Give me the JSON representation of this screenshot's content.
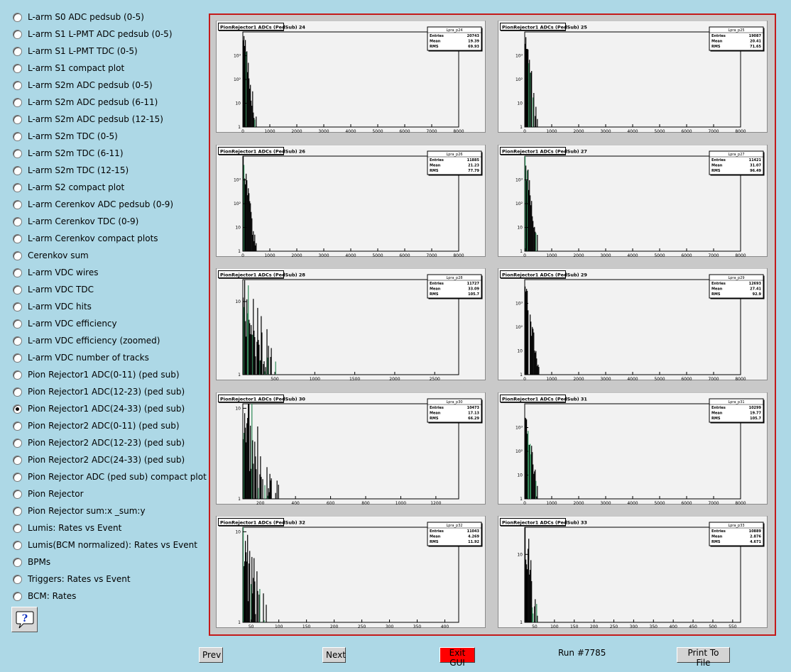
{
  "sidebar": {
    "items": [
      {
        "label": "L-arm S0 ADC pedsub (0-5)",
        "checked": false
      },
      {
        "label": "L-arm S1 L-PMT ADC pedsub (0-5)",
        "checked": false
      },
      {
        "label": "L-arm S1 L-PMT TDC (0-5)",
        "checked": false
      },
      {
        "label": "L-arm S1 compact plot",
        "checked": false
      },
      {
        "label": "L-arm S2m ADC pedsub (0-5)",
        "checked": false
      },
      {
        "label": "L-arm S2m ADC pedsub (6-11)",
        "checked": false
      },
      {
        "label": "L-arm S2m ADC pedsub (12-15)",
        "checked": false
      },
      {
        "label": "L-arm S2m TDC (0-5)",
        "checked": false
      },
      {
        "label": "L-arm S2m TDC (6-11)",
        "checked": false
      },
      {
        "label": "L-arm S2m TDC (12-15)",
        "checked": false
      },
      {
        "label": "L-arm S2 compact plot",
        "checked": false
      },
      {
        "label": "L-arm Cerenkov ADC pedsub (0-9)",
        "checked": false
      },
      {
        "label": "L-arm Cerenkov TDC (0-9)",
        "checked": false
      },
      {
        "label": "L-arm Cerenkov compact plots",
        "checked": false
      },
      {
        "label": "Cerenkov sum",
        "checked": false
      },
      {
        "label": "L-arm VDC wires",
        "checked": false
      },
      {
        "label": "L-arm VDC TDC",
        "checked": false
      },
      {
        "label": "L-arm VDC hits",
        "checked": false
      },
      {
        "label": "L-arm VDC efficiency",
        "checked": false
      },
      {
        "label": "L-arm VDC efficiency (zoomed)",
        "checked": false
      },
      {
        "label": "L-arm VDC number of tracks",
        "checked": false
      },
      {
        "label": "Pion Rejector1 ADC(0-11) (ped sub)",
        "checked": false
      },
      {
        "label": "Pion Rejector1 ADC(12-23) (ped sub)",
        "checked": false
      },
      {
        "label": "Pion Rejector1 ADC(24-33) (ped sub)",
        "checked": true
      },
      {
        "label": "Pion Rejector2 ADC(0-11) (ped sub)",
        "checked": false
      },
      {
        "label": "Pion Rejector2 ADC(12-23) (ped sub)",
        "checked": false
      },
      {
        "label": "Pion Rejector2 ADC(24-33) (ped sub)",
        "checked": false
      },
      {
        "label": "Pion Rejector ADC (ped sub) compact plot",
        "checked": false
      },
      {
        "label": "Pion Rejector",
        "checked": false
      },
      {
        "label": "Pion Rejector sum:x _sum:y",
        "checked": false
      },
      {
        "label": "Lumis: Rates vs Event",
        "checked": false
      },
      {
        "label": "Lumis(BCM normalized): Rates vs Event",
        "checked": false
      },
      {
        "label": "BPMs",
        "checked": false
      },
      {
        "label": "Triggers: Rates vs Event",
        "checked": false
      },
      {
        "label": "BCM: Rates",
        "checked": false
      }
    ],
    "help_icon": "question-mark-icon"
  },
  "chart_data": [
    {
      "type": "histogram",
      "title": "PionRejector1 ADCs (PedSub) 24",
      "stats": {
        "name": "Lpra_p24",
        "entries": "20743",
        "mean": "19.39",
        "rms": "69.93"
      },
      "xlim": [
        0,
        8000
      ],
      "xticks": [
        0,
        1000,
        2000,
        3000,
        4000,
        5000,
        6000,
        7000,
        8000
      ],
      "ylog": true,
      "yticks": [
        "1",
        "10",
        "10²",
        "10³"
      ],
      "ydecades": [
        0,
        4
      ],
      "hist": {
        "decay": 0.0035,
        "xmax": 900,
        "peak": 3.9
      }
    },
    {
      "type": "histogram",
      "title": "PionRejector1 ADCs (PedSub) 25",
      "stats": {
        "name": "Lpra_p25",
        "entries": "19087",
        "mean": "20.41",
        "rms": "71.65"
      },
      "xlim": [
        0,
        8000
      ],
      "xticks": [
        0,
        1000,
        2000,
        3000,
        4000,
        5000,
        6000,
        7000,
        8000
      ],
      "ylog": true,
      "yticks": [
        "1",
        "10",
        "10²",
        "10³"
      ],
      "ydecades": [
        0,
        4
      ],
      "hist": {
        "decay": 0.0035,
        "xmax": 900,
        "peak": 3.9
      }
    },
    {
      "type": "histogram",
      "title": "PionRejector1 ADCs (PedSub) 26",
      "stats": {
        "name": "Lpra_p26",
        "entries": "11885",
        "mean": "21.23",
        "rms": "77.79"
      },
      "xlim": [
        0,
        8000
      ],
      "xticks": [
        0,
        1000,
        2000,
        3000,
        4000,
        5000,
        6000,
        7000,
        8000
      ],
      "ylog": true,
      "yticks": [
        "1",
        "10",
        "10²",
        "10³"
      ],
      "ydecades": [
        0,
        4
      ],
      "hist": {
        "decay": 0.0035,
        "xmax": 900,
        "peak": 3.8
      }
    },
    {
      "type": "histogram",
      "title": "PionRejector1 ADCs (PedSub) 27",
      "stats": {
        "name": "Lpra_p27",
        "entries": "11421",
        "mean": "31.07",
        "rms": "96.49"
      },
      "xlim": [
        0,
        8000
      ],
      "xticks": [
        0,
        1000,
        2000,
        3000,
        4000,
        5000,
        6000,
        7000,
        8000
      ],
      "ylog": true,
      "yticks": [
        "1",
        "10",
        "10²",
        "10³"
      ],
      "ydecades": [
        0,
        4
      ],
      "hist": {
        "decay": 0.0032,
        "xmax": 1000,
        "peak": 3.8
      }
    },
    {
      "type": "histogram",
      "title": "PionRejector1 ADCs (PedSub) 28",
      "stats": {
        "name": "Lpra_p28",
        "entries": "11727",
        "mean": "33.09",
        "rms": "105.7"
      },
      "xlim": [
        100,
        2800
      ],
      "xticks": [
        500,
        1000,
        1500,
        2000,
        2500
      ],
      "ylog": true,
      "yticks": [
        "1",
        "10"
      ],
      "ydecades": [
        0,
        1.3
      ],
      "hist": {
        "decay": 0.0012,
        "xmax": 1150,
        "peak": 1.0
      }
    },
    {
      "type": "histogram",
      "title": "PionRejector1 ADCs (PedSub) 29",
      "stats": {
        "name": "Lpra_p29",
        "entries": "12693",
        "mean": "27.41",
        "rms": "92.9"
      },
      "xlim": [
        0,
        8000
      ],
      "xticks": [
        0,
        1000,
        2000,
        3000,
        4000,
        5000,
        6000,
        7000,
        8000
      ],
      "ylog": true,
      "yticks": [
        "1",
        "10",
        "10²",
        "10³"
      ],
      "ydecades": [
        0,
        4
      ],
      "hist": {
        "decay": 0.0033,
        "xmax": 950,
        "peak": 3.8
      }
    },
    {
      "type": "histogram",
      "title": "PionRejector1 ADCs (PedSub) 30",
      "stats": {
        "name": "Lpra_p30",
        "entries": "10473",
        "mean": "17.13",
        "rms": "66.29"
      },
      "xlim": [
        100,
        1330
      ],
      "xticks": [
        200,
        400,
        600,
        800,
        1000,
        1200
      ],
      "ylog": true,
      "yticks": [
        "1",
        "10"
      ],
      "ydecades": [
        0,
        1.05
      ],
      "hist": {
        "decay": 0.0025,
        "xmax": 1000,
        "peak": 0.9
      }
    },
    {
      "type": "histogram",
      "title": "PionRejector1 ADCs (PedSub) 31",
      "stats": {
        "name": "Lpra_p31",
        "entries": "10299",
        "mean": "19.77",
        "rms": "105.7"
      },
      "xlim": [
        0,
        8000
      ],
      "xticks": [
        0,
        1000,
        2000,
        3000,
        4000,
        5000,
        6000,
        7000,
        8000
      ],
      "ylog": true,
      "yticks": [
        "1",
        "10",
        "10²",
        "10³"
      ],
      "ydecades": [
        0,
        4
      ],
      "hist": {
        "decay": 0.0035,
        "xmax": 700,
        "peak": 3.8
      }
    },
    {
      "type": "histogram",
      "title": "PionRejector1 ADCs (PedSub) 32",
      "stats": {
        "name": "Lpra_p32",
        "entries": "11043",
        "mean": "4.269",
        "rms": "11.92"
      },
      "xlim": [
        35,
        425
      ],
      "xticks": [
        50,
        100,
        150,
        200,
        250,
        300,
        350,
        400
      ],
      "ylog": true,
      "yticks": [
        "1",
        "10"
      ],
      "ydecades": [
        0,
        1.05
      ],
      "hist": {
        "decay": 0.012,
        "xmax": 270,
        "peak": 0.9
      }
    },
    {
      "type": "histogram",
      "title": "PionRejector1 ADCs (PedSub) 33",
      "stats": {
        "name": "Lpra_p33",
        "entries": "10889",
        "mean": "2.876",
        "rms": "4.671"
      },
      "xlim": [
        25,
        570
      ],
      "xticks": [
        50,
        100,
        150,
        200,
        250,
        300,
        350,
        400,
        450,
        500,
        550
      ],
      "ylog": true,
      "yticks": [
        "1",
        "10"
      ],
      "ydecades": [
        0,
        1.4
      ],
      "hist": {
        "decay": 0.02,
        "xmax": 550,
        "peak": 1.3
      }
    }
  ],
  "stat_labels": {
    "entries": "Entries",
    "mean": "Mean",
    "rms": "RMS"
  },
  "colors": {
    "frame_border": "#c41a1a",
    "pad_bg": "#f2f2f2",
    "exit_button": "#ff0000"
  },
  "bottom_bar": {
    "prev_label": "Prev",
    "next_label": "Next",
    "exit_label": "Exit GUI",
    "run_label": "Run #7785",
    "print_label": "Print To File"
  }
}
